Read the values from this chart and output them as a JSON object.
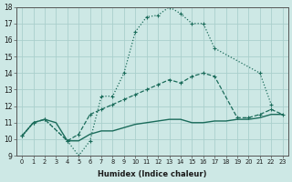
{
  "xlabel": "Humidex (Indice chaleur)",
  "background_color": "#cde8e5",
  "grid_color": "#aacfcc",
  "line_color": "#1a6b5a",
  "xlim": [
    -0.5,
    23.5
  ],
  "ylim": [
    9,
    18
  ],
  "x_line1": [
    0,
    1,
    2,
    4,
    5,
    6,
    7,
    8,
    9,
    10,
    11,
    12,
    13,
    14,
    15,
    16,
    17,
    21,
    22
  ],
  "y_line1": [
    10.2,
    11.0,
    11.2,
    9.9,
    9.0,
    9.9,
    12.6,
    12.6,
    14.0,
    16.5,
    17.4,
    17.5,
    18.0,
    17.6,
    17.0,
    17.0,
    15.5,
    14.0,
    12.1
  ],
  "x_line2": [
    0,
    1,
    2,
    4,
    5,
    6,
    7,
    8,
    9,
    10,
    11,
    12,
    13,
    14,
    15,
    16,
    17,
    19,
    20,
    21,
    22,
    23
  ],
  "y_line2": [
    10.2,
    11.0,
    11.2,
    9.9,
    10.3,
    11.5,
    11.8,
    12.1,
    12.4,
    12.7,
    13.0,
    13.3,
    13.6,
    13.4,
    13.8,
    14.0,
    13.8,
    11.3,
    11.3,
    11.5,
    11.8,
    11.5
  ],
  "x_line3": [
    0,
    1,
    2,
    3,
    4,
    5,
    6,
    7,
    8,
    9,
    10,
    11,
    12,
    13,
    14,
    15,
    16,
    17,
    18,
    19,
    20,
    21,
    22,
    23
  ],
  "y_line3": [
    10.2,
    11.0,
    11.2,
    11.0,
    9.9,
    9.9,
    10.3,
    10.5,
    10.5,
    10.7,
    10.9,
    11.0,
    11.1,
    11.2,
    11.2,
    11.0,
    11.0,
    11.1,
    11.1,
    11.2,
    11.2,
    11.3,
    11.5,
    11.5
  ]
}
